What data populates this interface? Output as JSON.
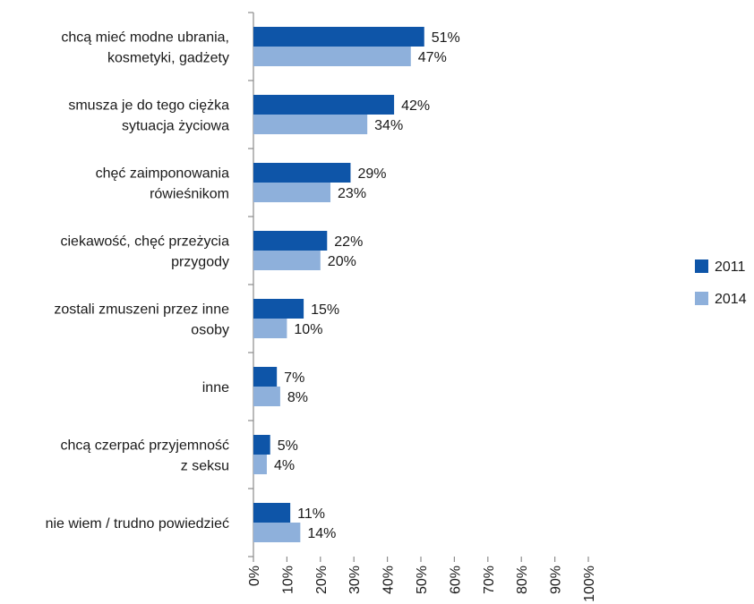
{
  "chart_data": {
    "type": "bar",
    "orientation": "horizontal",
    "categories": [
      [
        "chcą mieć modne ubrania,",
        "kosmetyki, gadżety"
      ],
      [
        "smusza je do tego ciężka",
        "sytuacja życiowa"
      ],
      [
        "chęć zaimponowania",
        "rówieśnikom"
      ],
      [
        "ciekawość, chęć przeżycia",
        "przygody"
      ],
      [
        "zostali zmuszeni przez inne",
        "osoby"
      ],
      [
        "inne"
      ],
      [
        "chcą czerpać przyjemność",
        "z seksu"
      ],
      [
        "nie wiem / trudno powiedzieć"
      ]
    ],
    "series": [
      {
        "name": "2011",
        "color": "#0e55a8",
        "values": [
          51,
          42,
          29,
          22,
          15,
          7,
          5,
          11
        ]
      },
      {
        "name": "2014",
        "color": "#8eb0db",
        "values": [
          47,
          34,
          23,
          20,
          10,
          8,
          4,
          14
        ]
      }
    ],
    "value_suffix": "%",
    "xlim": [
      0,
      100
    ],
    "xticks": [
      "0%",
      "10%",
      "20%",
      "30%",
      "40%",
      "50%",
      "60%",
      "70%",
      "80%",
      "90%",
      "100%"
    ],
    "xtick_values": [
      0,
      10,
      20,
      30,
      40,
      50,
      60,
      70,
      80,
      90,
      100
    ],
    "grid": false,
    "legend_position": "right"
  }
}
